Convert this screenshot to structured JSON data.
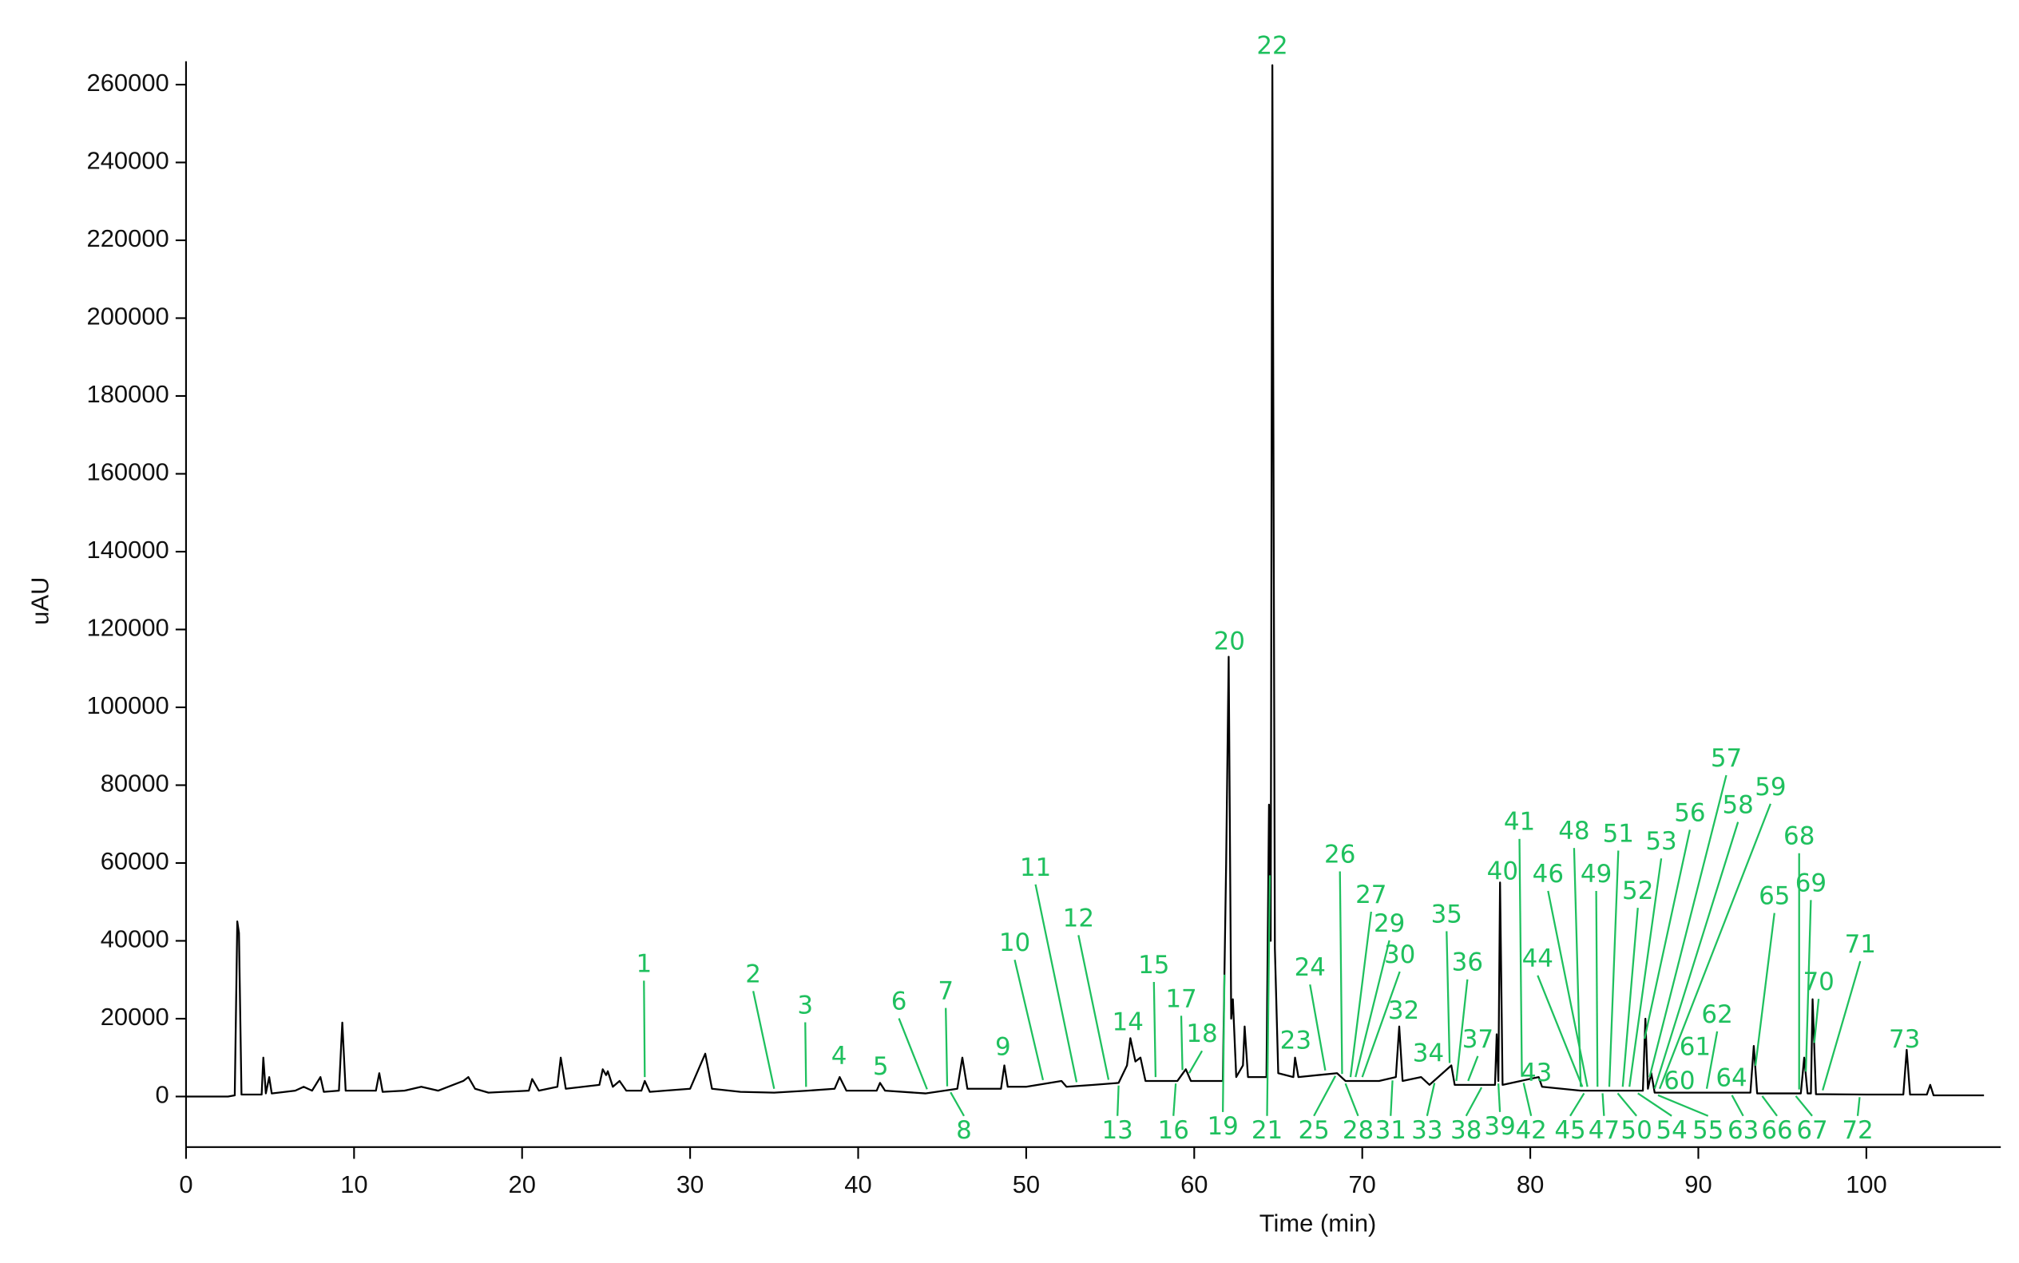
{
  "chart_data": {
    "type": "line",
    "xlabel": "Time (min)",
    "ylabel": "uAU",
    "color": "#000000",
    "label_color": "#1fc05e",
    "xlim": [
      0,
      108
    ],
    "ylim": [
      -13000,
      266000
    ],
    "xticks": [
      0,
      10,
      20,
      30,
      40,
      50,
      60,
      70,
      80,
      90,
      100
    ],
    "yticks": [
      0,
      20000,
      40000,
      60000,
      80000,
      100000,
      120000,
      140000,
      160000,
      180000,
      200000,
      220000,
      240000,
      260000
    ],
    "x": [
      0,
      2.5,
      2.9,
      3.05,
      3.15,
      3.3,
      4.5,
      4.6,
      4.75,
      4.95,
      5.1,
      6.5,
      7,
      7.5,
      8.0,
      8.2,
      9.1,
      9.3,
      9.5,
      11.3,
      11.5,
      11.7,
      13,
      14,
      15,
      16.5,
      16.8,
      17.2,
      18,
      20.4,
      20.6,
      21,
      22.1,
      22.3,
      22.6,
      24.6,
      24.8,
      25.0,
      25.1,
      25.4,
      25.8,
      26.2,
      27.1,
      27.3,
      27.6,
      28.5,
      30,
      30.9,
      31.3,
      33,
      35,
      37,
      38.6,
      38.9,
      39.3,
      41.1,
      41.3,
      41.6,
      44,
      45.9,
      46.2,
      46.5,
      48.5,
      48.7,
      48.9,
      50,
      52.1,
      52.4,
      54,
      55.5,
      56.0,
      56.2,
      56.5,
      56.8,
      57.1,
      59,
      59.5,
      59.8,
      61.7,
      61.9,
      62.05,
      62.2,
      62.3,
      62.5,
      62.9,
      63.0,
      63.2,
      64.3,
      64.45,
      64.55,
      64.65,
      64.8,
      65.0,
      65.9,
      66.0,
      66.2,
      68.5,
      69,
      71,
      72.0,
      72.2,
      72.4,
      73.5,
      74,
      75.3,
      75.5,
      77.9,
      78.0,
      78.1,
      78.2,
      78.35,
      80.5,
      80.7,
      83,
      86.7,
      86.85,
      87.0,
      87.2,
      87.4,
      90,
      93.1,
      93.3,
      93.5,
      96.1,
      96.3,
      96.5,
      96.7,
      96.8,
      97.0,
      100,
      102.2,
      102.4,
      102.6,
      103.6,
      103.8,
      104,
      107
    ],
    "values": [
      0,
      0,
      300,
      45000,
      42000,
      500,
      500,
      10000,
      800,
      5000,
      800,
      1500,
      2500,
      1500,
      5000,
      1200,
      1500,
      19000,
      1500,
      1500,
      6000,
      1200,
      1500,
      2500,
      1500,
      4000,
      5000,
      2000,
      1000,
      1500,
      4500,
      1500,
      2500,
      10000,
      2000,
      3000,
      7000,
      5500,
      6500,
      2500,
      4000,
      1500,
      1500,
      4000,
      1200,
      1500,
      2000,
      11000,
      2000,
      1200,
      1000,
      1500,
      2000,
      5000,
      1500,
      1500,
      3500,
      1500,
      800,
      2000,
      10000,
      2000,
      2000,
      8000,
      2500,
      2500,
      4000,
      2500,
      3000,
      3500,
      8000,
      15000,
      9000,
      10000,
      4000,
      4000,
      7000,
      4000,
      4000,
      60000,
      113000,
      20000,
      25000,
      5000,
      8000,
      18000,
      5000,
      5000,
      75000,
      40000,
      265000,
      38000,
      6000,
      5000,
      10000,
      5000,
      6000,
      4000,
      4000,
      5000,
      18000,
      4000,
      5000,
      3000,
      8000,
      3000,
      3000,
      16000,
      4000,
      55000,
      3000,
      5000,
      2500,
      1500,
      1500,
      20000,
      2000,
      6000,
      1000,
      1000,
      1000,
      13000,
      800,
      800,
      10000,
      800,
      800,
      25000,
      600,
      500,
      500,
      12000,
      500,
      500,
      3000,
      300,
      300
    ],
    "peaks": [
      {
        "label": "1",
        "x": 27.3
      },
      {
        "label": "2",
        "x": 35.0
      },
      {
        "label": "3",
        "x": 36.9
      },
      {
        "label": "4",
        "x": 39.0
      },
      {
        "label": "5",
        "x": 41.3
      },
      {
        "label": "6",
        "x": 44.1
      },
      {
        "label": "7",
        "x": 45.3
      },
      {
        "label": "8",
        "x": 45.5
      },
      {
        "label": "9",
        "x": 48.7
      },
      {
        "label": "10",
        "x": 51.0
      },
      {
        "label": "11",
        "x": 53.0
      },
      {
        "label": "12",
        "x": 54.9
      },
      {
        "label": "13",
        "x": 55.5
      },
      {
        "label": "14",
        "x": 56.2
      },
      {
        "label": "15",
        "x": 57.7
      },
      {
        "label": "16",
        "x": 58.9
      },
      {
        "label": "17",
        "x": 59.3
      },
      {
        "label": "18",
        "x": 59.7
      },
      {
        "label": "19",
        "x": 61.8
      },
      {
        "label": "20",
        "x": 62.05
      },
      {
        "label": "21",
        "x": 64.5
      },
      {
        "label": "22",
        "x": 64.65
      },
      {
        "label": "23",
        "x": 66.0
      },
      {
        "label": "24",
        "x": 67.8
      },
      {
        "label": "25",
        "x": 68.4
      },
      {
        "label": "26",
        "x": 68.8
      },
      {
        "label": "27",
        "x": 69.3
      },
      {
        "label": "28",
        "x": 69.0
      },
      {
        "label": "29",
        "x": 69.6
      },
      {
        "label": "30",
        "x": 70.0
      },
      {
        "label": "31",
        "x": 71.8
      },
      {
        "label": "32",
        "x": 72.2
      },
      {
        "label": "33",
        "x": 74.3
      },
      {
        "label": "34",
        "x": 74.0
      },
      {
        "label": "35",
        "x": 75.2
      },
      {
        "label": "36",
        "x": 75.6
      },
      {
        "label": "37",
        "x": 76.3
      },
      {
        "label": "38",
        "x": 77.1
      },
      {
        "label": "39",
        "x": 78.1
      },
      {
        "label": "40",
        "x": 78.2
      },
      {
        "label": "41",
        "x": 79.5
      },
      {
        "label": "42",
        "x": 79.6
      },
      {
        "label": "43",
        "x": 80.5
      },
      {
        "label": "44",
        "x": 83.1
      },
      {
        "label": "45",
        "x": 83.2
      },
      {
        "label": "46",
        "x": 83.4
      },
      {
        "label": "47",
        "x": 84.3
      },
      {
        "label": "48",
        "x": 83.0
      },
      {
        "label": "49",
        "x": 84.0
      },
      {
        "label": "50",
        "x": 85.2
      },
      {
        "label": "51",
        "x": 84.7
      },
      {
        "label": "52",
        "x": 85.5
      },
      {
        "label": "53",
        "x": 85.9
      },
      {
        "label": "54",
        "x": 86.4
      },
      {
        "label": "55",
        "x": 87.6
      },
      {
        "label": "56",
        "x": 86.8
      },
      {
        "label": "57",
        "x": 87.1
      },
      {
        "label": "58",
        "x": 87.4
      },
      {
        "label": "59",
        "x": 87.7
      },
      {
        "label": "60",
        "x": 89.1
      },
      {
        "label": "61",
        "x": 90.0
      },
      {
        "label": "62",
        "x": 90.5
      },
      {
        "label": "63",
        "x": 92.0
      },
      {
        "label": "64",
        "x": 91.9
      },
      {
        "label": "65",
        "x": 93.4
      },
      {
        "label": "66",
        "x": 93.8
      },
      {
        "label": "67",
        "x": 95.8
      },
      {
        "label": "68",
        "x": 96.0
      },
      {
        "label": "69",
        "x": 96.4
      },
      {
        "label": "70",
        "x": 96.9
      },
      {
        "label": "71",
        "x": 97.4
      },
      {
        "label": "72",
        "x": 99.6
      },
      {
        "label": "73",
        "x": 102.4
      }
    ]
  }
}
